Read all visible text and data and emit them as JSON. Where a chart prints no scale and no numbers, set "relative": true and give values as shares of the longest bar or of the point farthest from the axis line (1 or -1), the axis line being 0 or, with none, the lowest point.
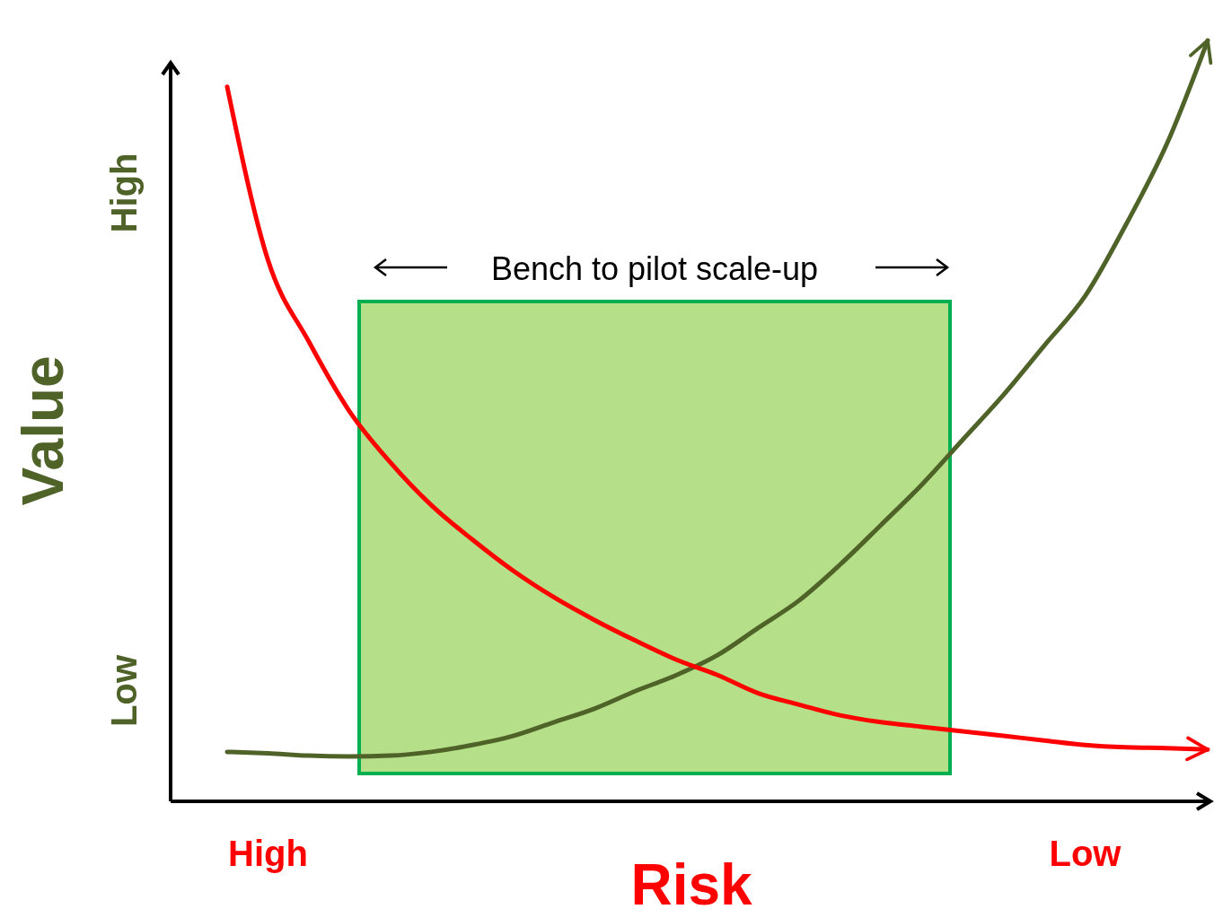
{
  "chart_data": {
    "type": "line",
    "relative": true,
    "xlabel": "Risk",
    "ylabel": "Value",
    "categories": [
      null,
      "High",
      null,
      null,
      null,
      null,
      null,
      null,
      null,
      null,
      null,
      null,
      null,
      null,
      null,
      null,
      null,
      null,
      null,
      null,
      null,
      "Low",
      null,
      null,
      null
    ],
    "annotations": [
      "High",
      "Low",
      "Bench to pilot scale-up"
    ],
    "series": [
      {
        "color": "#4f6228",
        "values": [
          0.065,
          0.063,
          0.06,
          0.059,
          0.06,
          0.065,
          0.074,
          0.086,
          0.104,
          0.122,
          0.145,
          0.166,
          0.192,
          0.228,
          0.264,
          0.311,
          0.363,
          0.416,
          0.475,
          0.534,
          0.599,
          0.664,
          0.758,
          0.864,
          1
        ]
      },
      {
        "color": "#ff0000",
        "values": [
          0.939,
          0.711,
          0.604,
          0.512,
          0.445,
          0.389,
          0.344,
          0.303,
          0.268,
          0.238,
          0.211,
          0.186,
          0.166,
          0.142,
          0.127,
          0.113,
          0.104,
          0.098,
          0.092,
          0.086,
          0.08,
          0.074,
          0.071,
          0.07,
          0.068
        ]
      }
    ]
  }
}
